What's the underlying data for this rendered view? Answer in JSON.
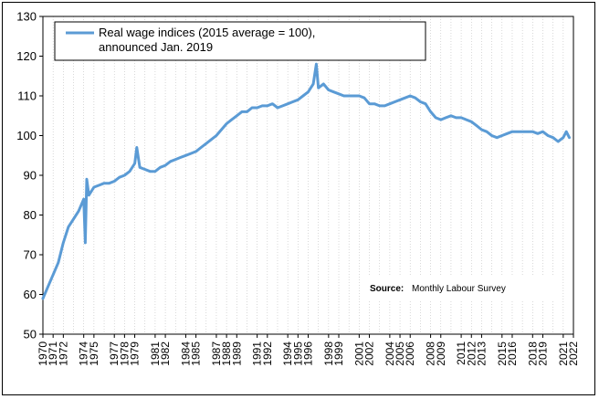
{
  "chart_data": {
    "type": "line",
    "title": "",
    "xlabel": "",
    "ylabel": "",
    "ylim": [
      50,
      130
    ],
    "yticks": [
      50,
      60,
      70,
      80,
      90,
      100,
      110,
      120,
      130
    ],
    "xlim": [
      1970,
      2022
    ],
    "xticks": [
      1970,
      1971,
      1972,
      1974,
      1975,
      1977,
      1978,
      1979,
      1981,
      1982,
      1984,
      1985,
      1987,
      1988,
      1989,
      1991,
      1992,
      1994,
      1995,
      1996,
      1998,
      1999,
      2001,
      2002,
      2004,
      2005,
      2006,
      2008,
      2009,
      2011,
      2012,
      2013,
      2015,
      2016,
      2018,
      2019,
      2021,
      2022
    ],
    "grid": "vertical dotted lines",
    "legend_placement": "top-left",
    "series": [
      {
        "name": "Real wage indices (2015 average = 100),\nannounced Jan. 2019",
        "color": "#5b9bd5",
        "x": [
          1970.0,
          1970.5,
          1971.0,
          1971.5,
          1972.0,
          1972.5,
          1973.0,
          1973.5,
          1974.0,
          1974.15,
          1974.3,
          1974.5,
          1975.0,
          1975.5,
          1976.0,
          1976.5,
          1977.0,
          1977.5,
          1978.0,
          1978.5,
          1979.0,
          1979.2,
          1979.5,
          1980.0,
          1980.5,
          1981.0,
          1981.5,
          1982.0,
          1982.5,
          1983.0,
          1983.5,
          1984.0,
          1984.5,
          1985.0,
          1985.5,
          1986.0,
          1986.5,
          1987.0,
          1987.5,
          1988.0,
          1988.5,
          1989.0,
          1989.5,
          1990.0,
          1990.5,
          1991.0,
          1991.5,
          1992.0,
          1992.5,
          1993.0,
          1993.5,
          1994.0,
          1994.5,
          1995.0,
          1995.5,
          1996.0,
          1996.5,
          1996.8,
          1997.0,
          1997.5,
          1998.0,
          1998.5,
          1999.0,
          1999.5,
          2000.0,
          2000.5,
          2001.0,
          2001.5,
          2002.0,
          2002.5,
          2003.0,
          2003.5,
          2004.0,
          2004.5,
          2005.0,
          2005.5,
          2006.0,
          2006.5,
          2007.0,
          2007.5,
          2008.0,
          2008.5,
          2009.0,
          2009.5,
          2010.0,
          2010.5,
          2011.0,
          2011.5,
          2012.0,
          2012.5,
          2013.0,
          2013.5,
          2014.0,
          2014.5,
          2015.0,
          2015.5,
          2016.0,
          2016.5,
          2017.0,
          2017.5,
          2018.0,
          2018.5,
          2019.0,
          2019.5,
          2020.0,
          2020.5,
          2021.0,
          2021.3,
          2021.6
        ],
        "values": [
          59,
          62,
          65,
          68,
          73,
          77,
          79,
          81,
          84,
          73,
          89,
          85,
          87,
          87.5,
          88,
          88,
          88.5,
          89.5,
          90,
          91,
          93,
          97,
          92,
          91.5,
          91,
          91,
          92,
          92.5,
          93.5,
          94,
          94.5,
          95,
          95.5,
          96,
          97,
          98,
          99,
          100,
          101.5,
          103,
          104,
          105,
          106,
          106,
          107,
          107,
          107.5,
          107.5,
          108,
          107,
          107.5,
          108,
          108.5,
          109,
          110,
          111,
          113,
          118,
          112,
          113,
          111.5,
          111,
          110.5,
          110,
          110,
          110,
          110,
          109.5,
          108,
          108,
          107.5,
          107.5,
          108,
          108.5,
          109,
          109.5,
          110,
          109.5,
          108.5,
          108,
          106,
          104.5,
          104,
          104.5,
          105,
          104.5,
          104.5,
          104,
          103.5,
          102.5,
          101.5,
          101,
          100,
          99.5,
          100,
          100.5,
          101,
          101,
          101,
          101,
          101,
          100.5,
          101,
          100,
          99.5,
          98.5,
          99.5,
          101,
          99.5
        ]
      }
    ],
    "source_label": "Source:",
    "source_text": "Monthly  Labour Survey"
  }
}
